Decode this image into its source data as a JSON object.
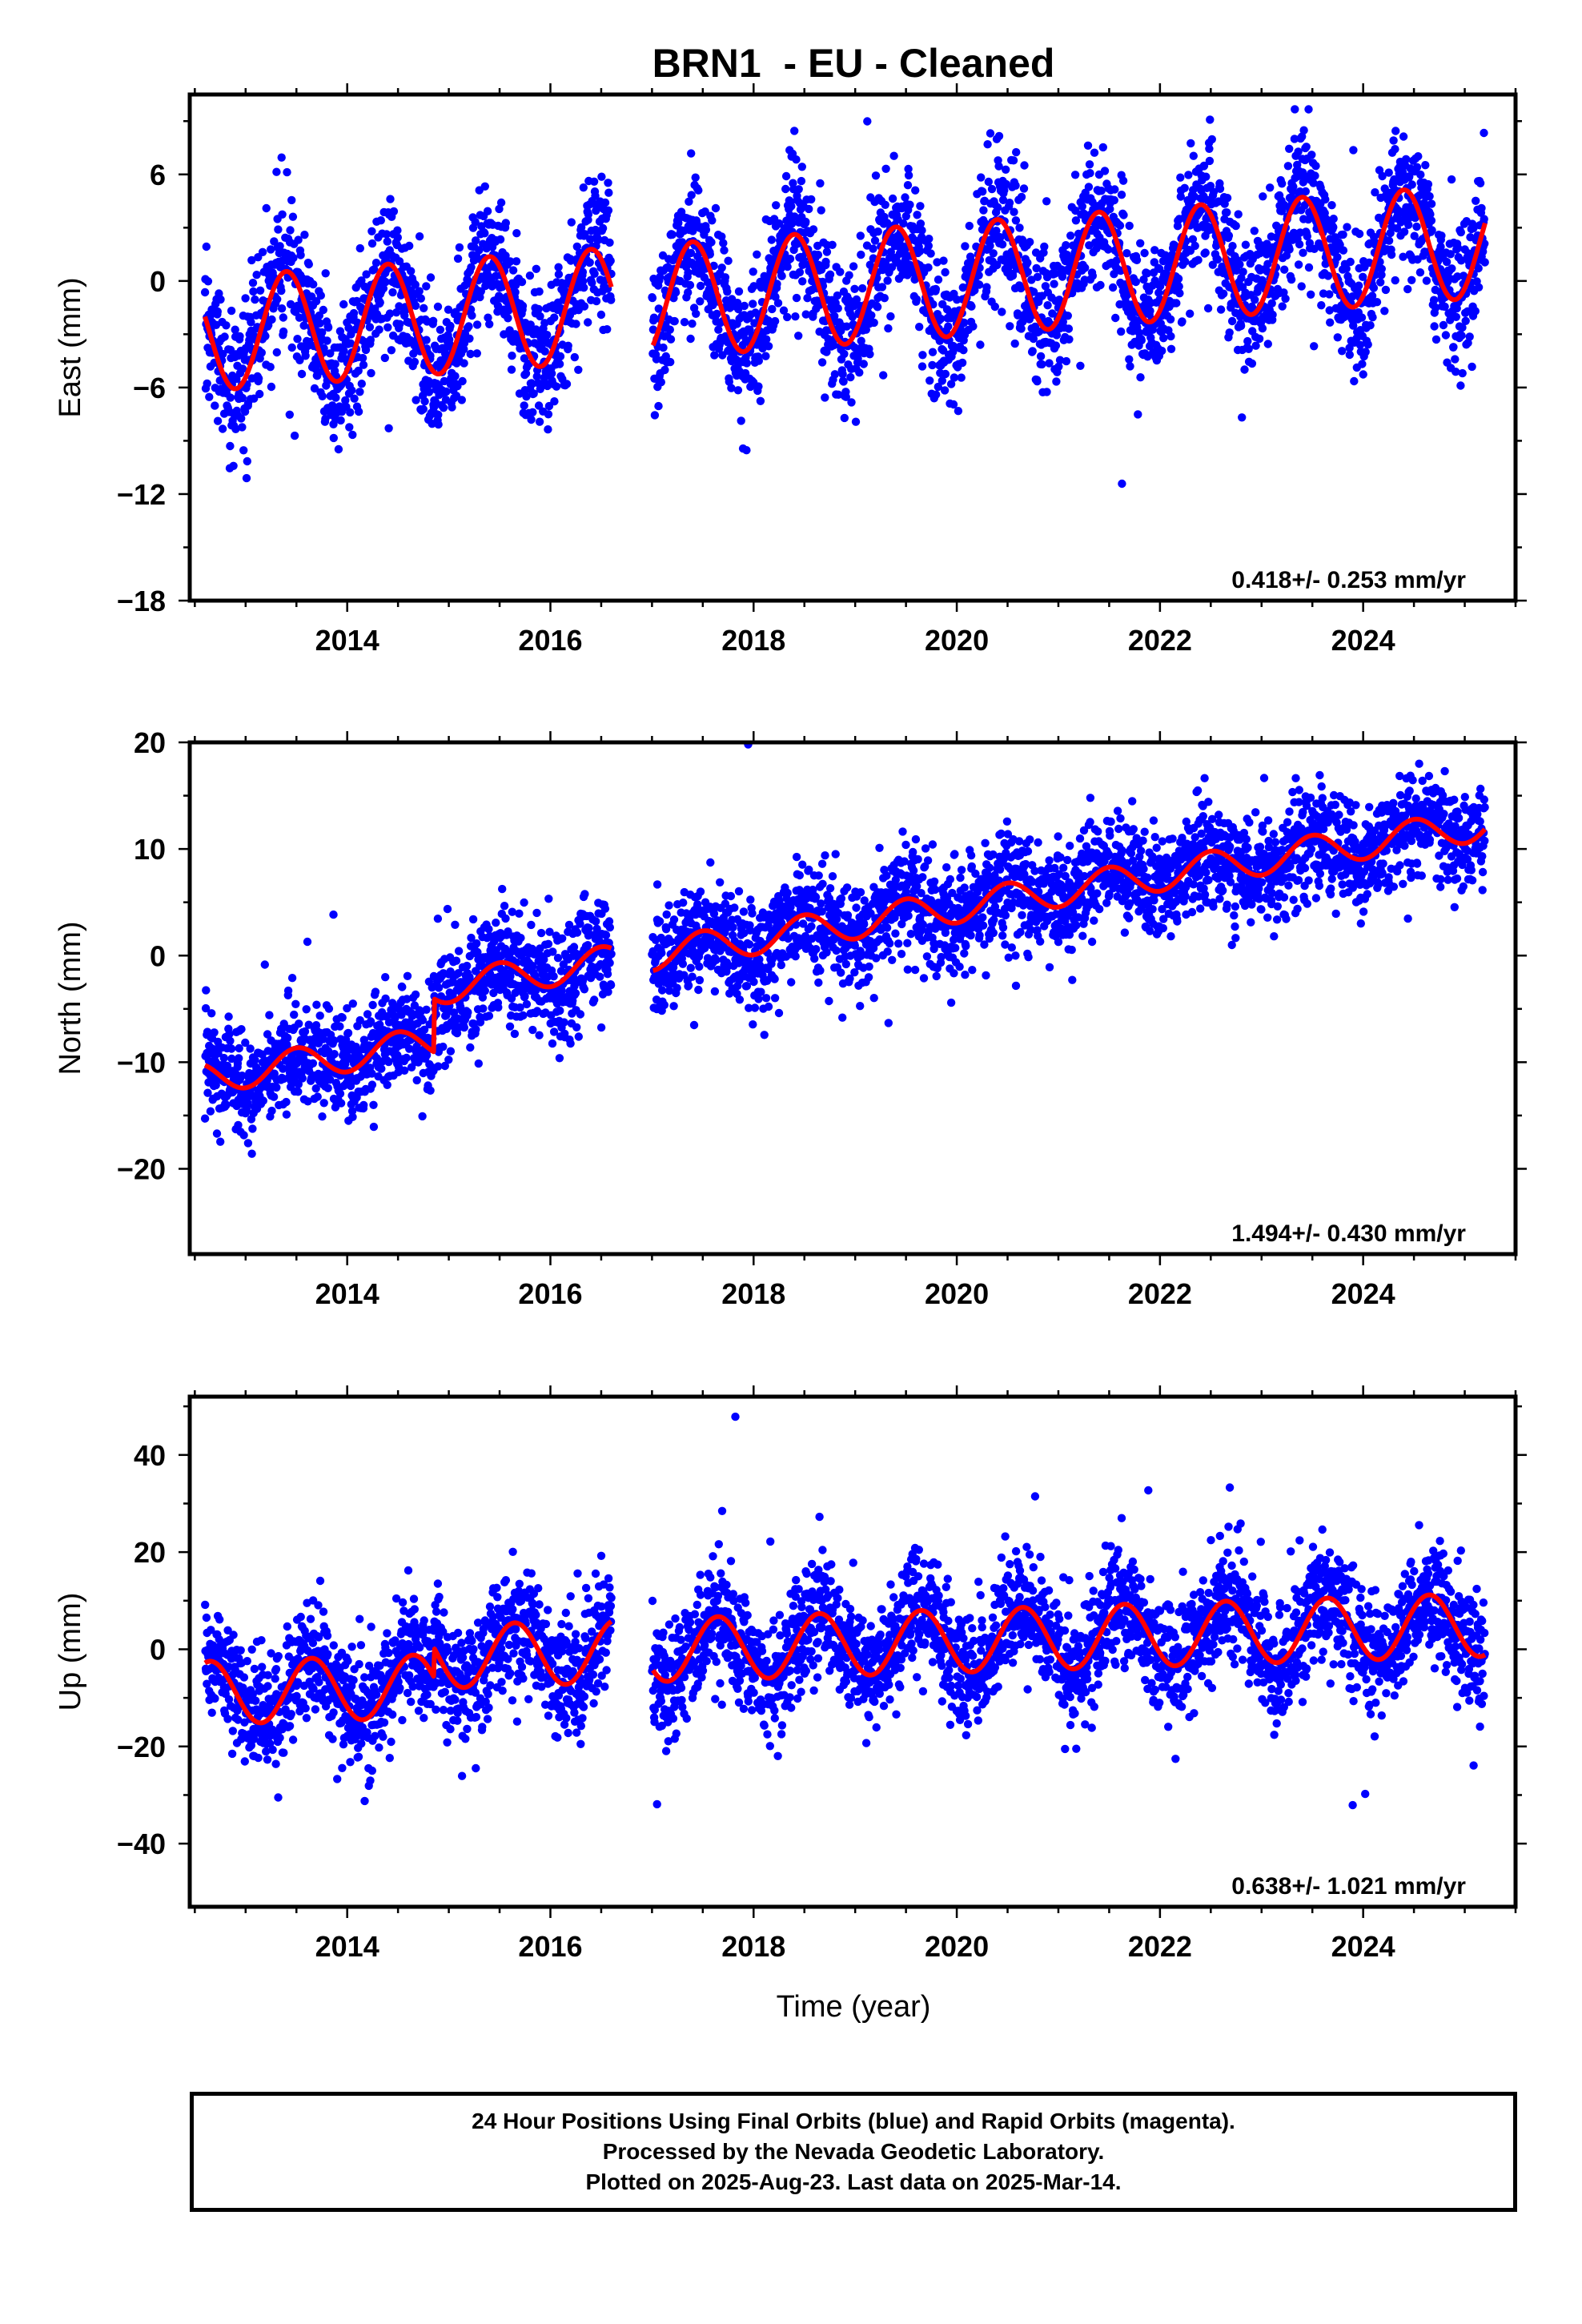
{
  "title": "BRN1  - EU - Cleaned",
  "xlabel": "Time (year)",
  "colors": {
    "points": "#0000ff",
    "fit": "#ff0000",
    "frame": "#000000"
  },
  "footer": {
    "line1": "24 Hour Positions Using Final Orbits (blue) and Rapid Orbits (magenta).",
    "line2": "Processed by the Nevada Geodetic Laboratory.",
    "line3": "Plotted on 2025-Aug-23. Last data on 2025-Mar-14."
  },
  "chart_data": [
    {
      "type": "scatter",
      "ylabel": "East (mm)",
      "rate": "0.418+/- 0.253 mm/yr",
      "xlim": [
        2012.45,
        2025.5
      ],
      "ylim": [
        -18,
        10.5
      ],
      "yticks": [
        -18,
        -12,
        -6,
        0,
        6
      ],
      "xticks": [
        2014,
        2016,
        2018,
        2020,
        2022,
        2024
      ],
      "data_start": 2012.6,
      "data_end": 2025.2,
      "gap": [
        2016.6,
        2017.0
      ],
      "trend": {
        "ref_year": 2012.6,
        "offset": -3.0,
        "rate": 0.418,
        "amp": 3.2,
        "phase_year": 2013.4,
        "step_year": null,
        "step": 0
      },
      "noise_mm": 2.0,
      "n_points": 3800
    },
    {
      "type": "scatter",
      "ylabel": "North (mm)",
      "rate": "1.494+/- 0.430 mm/yr",
      "xlim": [
        2012.45,
        2025.5
      ],
      "ylim": [
        -28,
        20
      ],
      "yticks": [
        -20,
        -10,
        0,
        10,
        20
      ],
      "xticks": [
        2014,
        2016,
        2018,
        2020,
        2022,
        2024
      ],
      "data_start": 2012.6,
      "data_end": 2025.2,
      "gap": [
        2016.6,
        2017.0
      ],
      "trend": {
        "ref_year": 2012.6,
        "offset": -11.5,
        "rate": 1.494,
        "amp": 1.5,
        "phase_year": 2013.5,
        "step_year": 2014.85,
        "step": 5.0
      },
      "noise_mm": 2.5,
      "n_points": 3800
    },
    {
      "type": "scatter",
      "ylabel": "Up (mm)",
      "rate": "0.638+/- 1.021 mm/yr",
      "xlim": [
        2012.45,
        2025.5
      ],
      "ylim": [
        -53,
        52
      ],
      "yticks": [
        -40,
        -20,
        0,
        20,
        40
      ],
      "xticks": [
        2014,
        2016,
        2018,
        2020,
        2022,
        2024
      ],
      "data_start": 2012.6,
      "data_end": 2025.2,
      "gap": [
        2016.6,
        2017.0
      ],
      "trend": {
        "ref_year": 2012.6,
        "offset": -9.0,
        "rate": 0.638,
        "amp": 6.5,
        "phase_year": 2013.65,
        "step_year": 2014.85,
        "step": 6.0
      },
      "noise_mm": 6.0,
      "n_points": 3800
    }
  ]
}
